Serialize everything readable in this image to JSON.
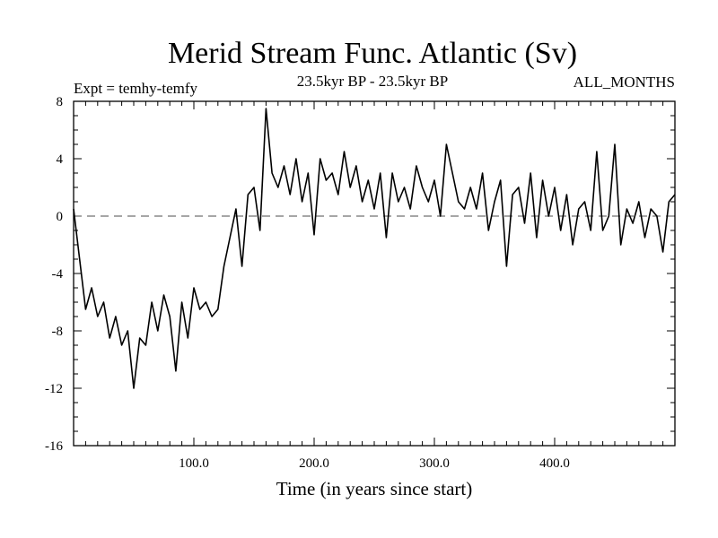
{
  "chart_data": {
    "type": "line",
    "title": "Merid Stream Func. Atlantic (Sv)",
    "subtitle": "23.5kyr BP - 23.5kyr BP",
    "experiment": "Expt = temhy-temfy",
    "period": "ALL_MONTHS",
    "xlabel": "Time (in years since start)",
    "ylabel": "",
    "xlim": [
      0,
      500
    ],
    "ylim": [
      -16,
      8
    ],
    "xticks": [
      {
        "value": 100,
        "label": "100.0"
      },
      {
        "value": 200,
        "label": "200.0"
      },
      {
        "value": 300,
        "label": "300.0"
      },
      {
        "value": 400,
        "label": "400.0"
      }
    ],
    "yticks": [
      {
        "value": 8,
        "label": "8"
      },
      {
        "value": 4,
        "label": "4"
      },
      {
        "value": 0,
        "label": "0"
      },
      {
        "value": -4,
        "label": "-4"
      },
      {
        "value": -8,
        "label": "-8"
      },
      {
        "value": -12,
        "label": "-12"
      },
      {
        "value": -16,
        "label": "-16"
      }
    ],
    "zero_line": 0,
    "series": [
      {
        "name": "temhy-temfy",
        "x": [
          0,
          5,
          10,
          15,
          20,
          25,
          30,
          35,
          40,
          45,
          50,
          55,
          60,
          65,
          70,
          75,
          80,
          85,
          90,
          95,
          100,
          105,
          110,
          115,
          120,
          125,
          130,
          135,
          140,
          145,
          150,
          155,
          160,
          165,
          170,
          175,
          180,
          185,
          190,
          195,
          200,
          205,
          210,
          215,
          220,
          225,
          230,
          235,
          240,
          245,
          250,
          255,
          260,
          265,
          270,
          275,
          280,
          285,
          290,
          295,
          300,
          305,
          310,
          315,
          320,
          325,
          330,
          335,
          340,
          345,
          350,
          355,
          360,
          365,
          370,
          375,
          380,
          385,
          390,
          395,
          400,
          405,
          410,
          415,
          420,
          425,
          430,
          435,
          440,
          445,
          450,
          455,
          460,
          465,
          470,
          475,
          480,
          485,
          490,
          495,
          500
        ],
        "values": [
          0.5,
          -3.0,
          -6.5,
          -5.0,
          -7.0,
          -6.0,
          -8.5,
          -7.0,
          -9.0,
          -8.0,
          -12.0,
          -8.5,
          -9.0,
          -6.0,
          -8.0,
          -5.5,
          -7.0,
          -10.8,
          -6.0,
          -8.5,
          -5.0,
          -6.5,
          -6.0,
          -7.0,
          -6.5,
          -3.5,
          -1.5,
          0.5,
          -3.5,
          1.5,
          2.0,
          -1.0,
          7.5,
          3.0,
          2.0,
          3.5,
          1.5,
          4.0,
          1.0,
          3.0,
          -1.3,
          4.0,
          2.5,
          3.0,
          1.5,
          4.5,
          2.0,
          3.5,
          1.0,
          2.5,
          0.5,
          3.0,
          -1.5,
          3.0,
          1.0,
          2.0,
          0.5,
          3.5,
          2.0,
          1.0,
          2.5,
          0.0,
          5.0,
          3.0,
          1.0,
          0.5,
          2.0,
          0.5,
          3.0,
          -1.0,
          1.0,
          2.5,
          -3.5,
          1.5,
          2.0,
          -0.5,
          3.0,
          -1.5,
          2.5,
          0.0,
          2.0,
          -1.0,
          1.5,
          -2.0,
          0.5,
          1.0,
          -1.0,
          4.5,
          -1.0,
          0.0,
          5.0,
          -2.0,
          0.5,
          -0.5,
          1.0,
          -1.5,
          0.5,
          0.0,
          -2.5,
          1.0,
          1.5
        ]
      }
    ]
  }
}
